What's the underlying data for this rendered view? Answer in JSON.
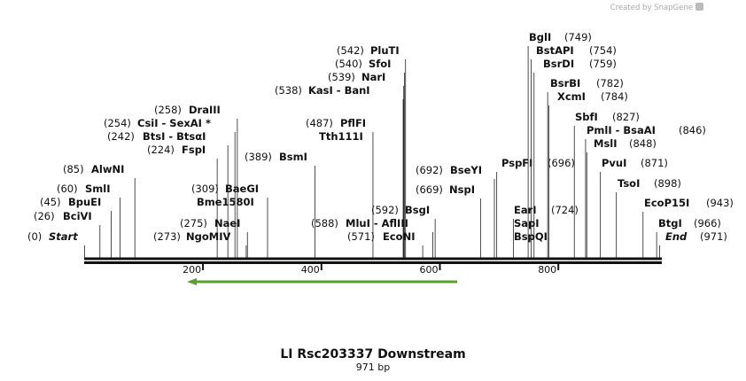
{
  "watermark": "Created by SnapGene",
  "title": "LI Rsc203337 Downstream",
  "subtitle": "971 bp",
  "ruler": {
    "length": 971,
    "ticks": [
      200,
      400,
      600,
      800
    ]
  },
  "sites": [
    {
      "name": "Start",
      "position": {
        "value": 0,
        "label": "(0)"
      }
    },
    {
      "name": "BciVI",
      "position": {
        "value": 26,
        "label": "(26)"
      }
    },
    {
      "name": "BpuEI",
      "position": {
        "value": 45,
        "label": "(45)"
      }
    },
    {
      "name": "SmlI",
      "position": {
        "value": 60,
        "label": "(60)"
      }
    },
    {
      "name": "AlwNI",
      "position": {
        "value": 85,
        "label": "(85)"
      }
    },
    {
      "name": "FspI",
      "position": {
        "value": 224,
        "label": "(224)"
      }
    },
    {
      "name": "BtsI - BtsαI",
      "position": {
        "value": 242,
        "label": "(242)"
      }
    },
    {
      "name": "CsiI - SexAI *",
      "position": {
        "value": 254,
        "label": "(254)"
      }
    },
    {
      "name": "DraIII",
      "position": {
        "value": 258,
        "label": "(258)"
      }
    },
    {
      "name": "NgoMIV",
      "position": {
        "value": 273,
        "label": "(273)"
      }
    },
    {
      "name": "NaeI",
      "position": {
        "value": 275,
        "label": "(275)"
      }
    },
    {
      "name": "BaeGI",
      "position": {
        "value": 309,
        "label": "(309)"
      }
    },
    {
      "name": "Bme1580I"
    },
    {
      "name": "BsmI",
      "position": {
        "value": 389,
        "label": "(389)"
      }
    },
    {
      "name": "PflFI",
      "position": {
        "value": 487,
        "label": "(487)"
      }
    },
    {
      "name": "Tth111I"
    },
    {
      "name": "KasI - BanI",
      "position": {
        "value": 538,
        "label": "(538)"
      }
    },
    {
      "name": "NarI",
      "position": {
        "value": 539,
        "label": "(539)"
      }
    },
    {
      "name": "SfoI",
      "position": {
        "value": 540,
        "label": "(540)"
      }
    },
    {
      "name": "PluTI",
      "position": {
        "value": 542,
        "label": "(542)"
      }
    },
    {
      "name": "EcoNI",
      "position": {
        "value": 571,
        "label": "(571)"
      }
    },
    {
      "name": "MluI - AflIII",
      "position": {
        "value": 588,
        "label": "(588)"
      }
    },
    {
      "name": "BsgI",
      "position": {
        "value": 592,
        "label": "(592)"
      }
    },
    {
      "name": "NspI",
      "position": {
        "value": 669,
        "label": "(669)"
      }
    },
    {
      "name": "BseYI",
      "position": {
        "value": 692,
        "label": "(692)"
      }
    },
    {
      "name": "PspFI",
      "position": {
        "value": 696,
        "label": "(696)"
      }
    },
    {
      "name": "EarI",
      "position": {
        "value": 724,
        "label": "(724)"
      }
    },
    {
      "name": "SapI"
    },
    {
      "name": "BspQI"
    },
    {
      "name": "BglI",
      "position": {
        "value": 749,
        "label": "(749)"
      }
    },
    {
      "name": "BstAPI",
      "position": {
        "value": 754,
        "label": "(754)"
      }
    },
    {
      "name": "BsrDI",
      "position": {
        "value": 759,
        "label": "(759)"
      }
    },
    {
      "name": "BsrBI",
      "position": {
        "value": 782,
        "label": "(782)"
      }
    },
    {
      "name": "XcmI",
      "position": {
        "value": 784,
        "label": "(784)"
      }
    },
    {
      "name": "SbfI",
      "position": {
        "value": 827,
        "label": "(827)"
      }
    },
    {
      "name": "PmlI - BsaAI",
      "position": {
        "value": 846,
        "label": "(846)"
      }
    },
    {
      "name": "MslI",
      "position": {
        "value": 848,
        "label": "(848)"
      }
    },
    {
      "name": "PvuI",
      "position": {
        "value": 871,
        "label": "(871)"
      }
    },
    {
      "name": "TsoI",
      "position": {
        "value": 898,
        "label": "(898)"
      }
    },
    {
      "name": "EcoP15I",
      "position": {
        "value": 943,
        "label": "(943)"
      }
    },
    {
      "name": "BtgI",
      "position": {
        "value": 966,
        "label": "(966)"
      }
    },
    {
      "name": "End",
      "position": {
        "value": 971,
        "label": "(971)"
      }
    }
  ]
}
